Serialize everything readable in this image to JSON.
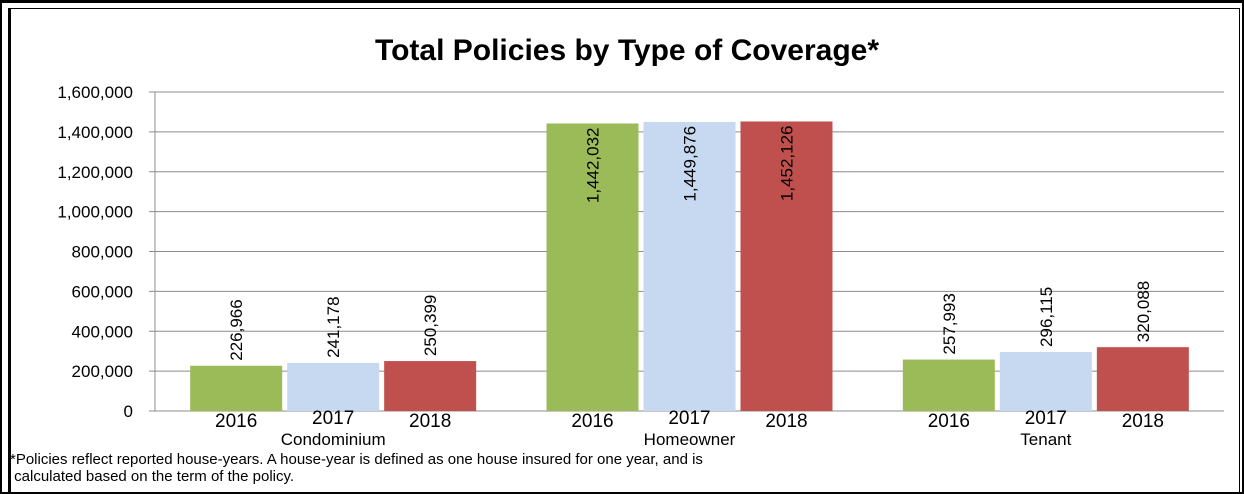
{
  "chart_data": {
    "type": "bar",
    "title": "Total Policies by Type of Coverage*",
    "categories": [
      "Condominium",
      "Homeowner",
      "Tenant"
    ],
    "bar_labels": [
      "2016",
      "2017",
      "2018"
    ],
    "series": [
      {
        "name": "2016",
        "color": "#9bbb59",
        "values": [
          226966,
          1442032,
          257993
        ]
      },
      {
        "name": "2017",
        "color": "#c6d9f1",
        "values": [
          241178,
          1449876,
          296115
        ]
      },
      {
        "name": "2018",
        "color": "#c0504d",
        "values": [
          250399,
          1452126,
          320088
        ]
      }
    ],
    "data_labels": [
      [
        "226,966",
        "1,442,032",
        "257,993"
      ],
      [
        "241,178",
        "1,449,876",
        "296,115"
      ],
      [
        "250,399",
        "1,452,126",
        "320,088"
      ]
    ],
    "ylim": [
      0,
      1600000
    ],
    "yticks": [
      0,
      200000,
      400000,
      600000,
      800000,
      1000000,
      1200000,
      1400000,
      1600000
    ],
    "ytick_labels": [
      "0",
      "200,000",
      "400,000",
      "600,000",
      "800,000",
      "1,000,000",
      "1,200,000",
      "1,400,000",
      "1,600,000"
    ],
    "grid": true,
    "legend": "none"
  },
  "footnote": {
    "line1": "*Policies reflect reported house-years. A house-year is defined as one house insured for one year, and is",
    "line2": " calculated based on the term of the policy."
  }
}
